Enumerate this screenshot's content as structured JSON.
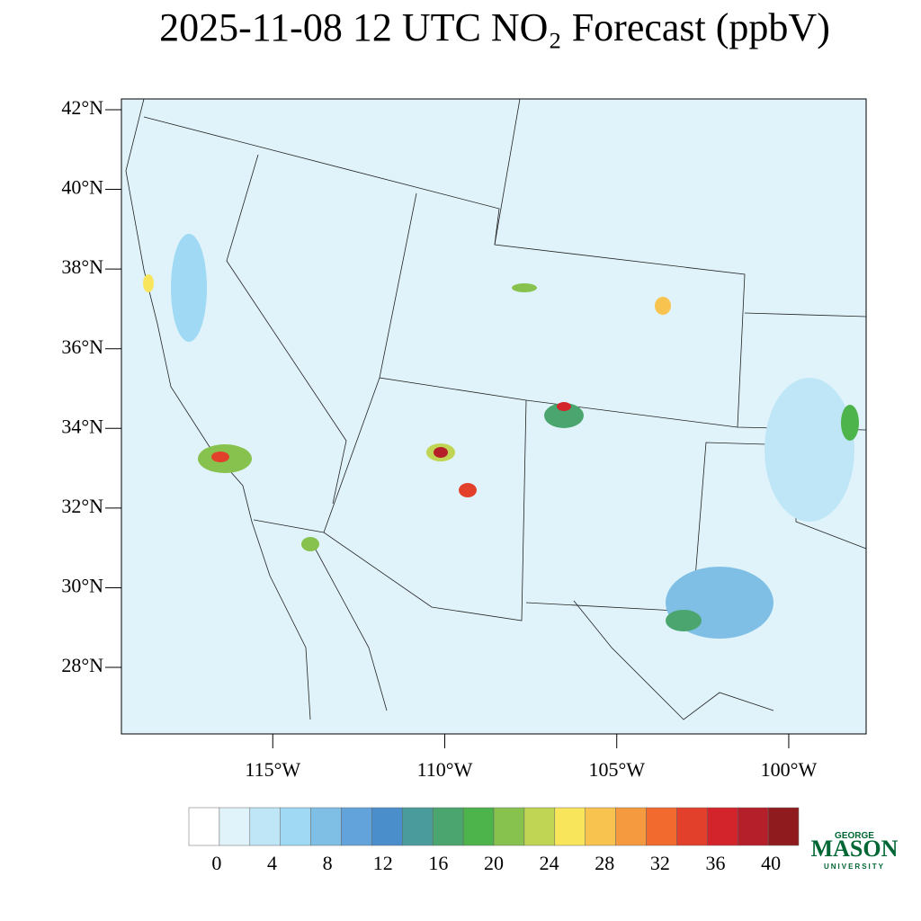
{
  "map": {
    "title": "2025-11-08 12 UTC NO₂ Forecast (ppbV)",
    "lat_range": [
      26.33,
      42.27
    ],
    "lon_range": [
      -119.4,
      -97.75
    ],
    "lat_ticks": [
      {
        "value": 42,
        "label": "42°N"
      },
      {
        "value": 40,
        "label": "40°N"
      },
      {
        "value": 38,
        "label": "38°N"
      },
      {
        "value": 36,
        "label": "36°N"
      },
      {
        "value": 34,
        "label": "34°N"
      },
      {
        "value": 32,
        "label": "32°N"
      },
      {
        "value": 30,
        "label": "30°N"
      },
      {
        "value": 28,
        "label": "28°N"
      }
    ],
    "lon_ticks": [
      {
        "value": -115,
        "label": "115°W"
      },
      {
        "value": -110,
        "label": "110°W"
      },
      {
        "value": -105,
        "label": "105°W"
      },
      {
        "value": -100,
        "label": "100°W"
      }
    ],
    "colorbar": {
      "range": [
        -2,
        42
      ],
      "ticks": [
        0,
        4,
        8,
        12,
        16,
        20,
        24,
        28,
        32,
        36,
        40
      ],
      "colors": [
        "#ffffff",
        "#e0f3fb",
        "#bfe6f7",
        "#9fd9f3",
        "#80bfe5",
        "#62a3dc",
        "#4a8ecb",
        "#4a9c9c",
        "#4aa66e",
        "#4cb44a",
        "#86c24d",
        "#c0d553",
        "#f8e55c",
        "#f8c34f",
        "#f69a3f",
        "#f26a2e",
        "#e2402a",
        "#d3232b",
        "#b51f2a",
        "#8f1b1e"
      ]
    },
    "logo": {
      "top": "GEORGE",
      "main": "MASON",
      "bottom": "UNIVERSITY"
    }
  }
}
